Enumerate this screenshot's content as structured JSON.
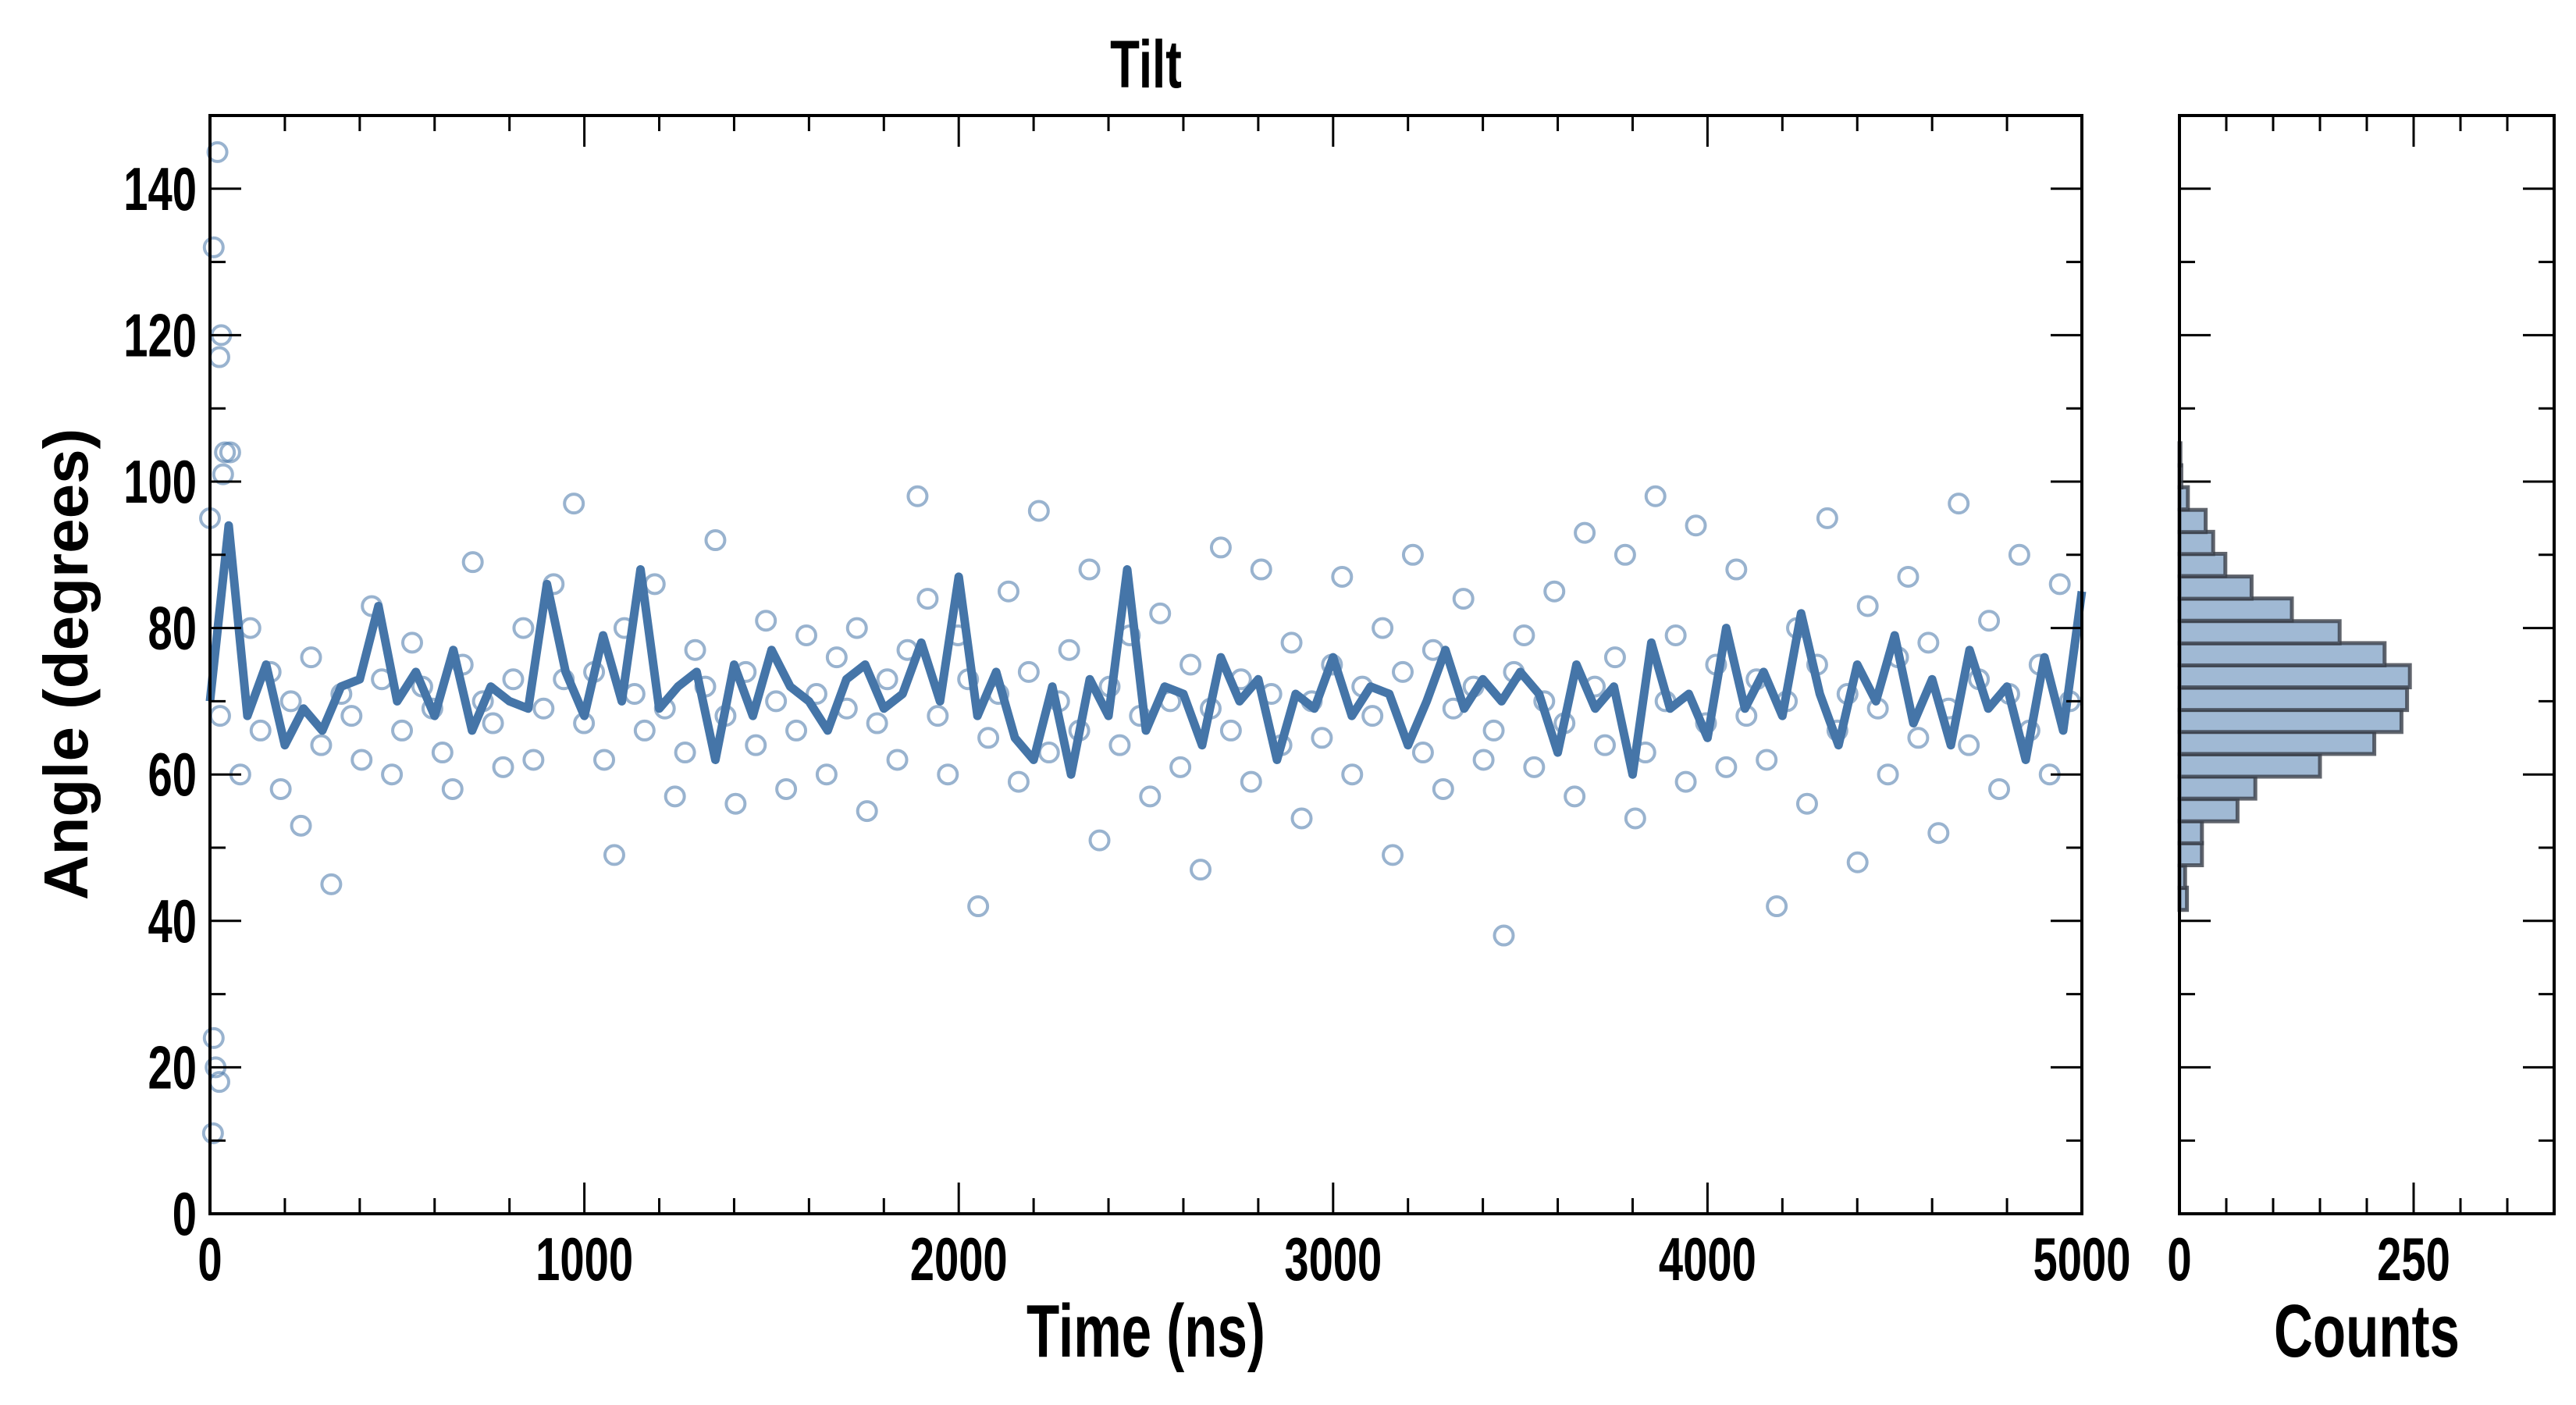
{
  "chart_data": [
    {
      "type": "scatter",
      "title": "Tilt",
      "xlabel": "Time (ns)",
      "ylabel": "Angle (degrees)",
      "xlim": [
        0,
        5000
      ],
      "ylim": [
        0,
        150
      ],
      "xticks": [
        "0",
        "1000",
        "2000",
        "3000",
        "4000",
        "5000"
      ],
      "yticks": [
        "0",
        "20",
        "40",
        "60",
        "80",
        "100",
        "120",
        "140"
      ],
      "grid": false,
      "colors": {
        "points": "#4575a8",
        "line": "#4575a8",
        "hist_fill": "#a0b9d4",
        "hist_edge": "#3a3f48"
      },
      "series": [
        {
          "name": "raw angle (hollow markers)",
          "x_start": 0,
          "x_step": 27,
          "values": [
            95,
            68,
            104,
            60,
            80,
            66,
            74,
            58,
            70,
            53,
            76,
            64,
            45,
            71,
            68,
            62,
            83,
            73,
            60,
            66,
            78,
            72,
            69,
            63,
            58,
            75,
            89,
            70,
            67,
            61,
            73,
            80,
            62,
            69,
            86,
            73,
            97,
            67,
            74,
            62,
            49,
            80,
            71,
            66,
            86,
            69,
            57,
            63,
            77,
            72,
            92,
            68,
            56,
            74,
            64,
            81,
            70,
            58,
            66,
            79,
            71,
            60,
            76,
            69,
            80,
            55,
            67,
            73,
            62,
            77,
            98,
            84,
            68,
            60,
            79,
            73,
            42,
            65,
            71,
            85,
            59,
            74,
            96,
            63,
            70,
            77,
            66,
            88,
            51,
            72,
            64,
            79,
            68,
            57,
            82,
            70,
            61,
            75,
            47,
            69,
            91,
            66,
            73,
            59,
            88,
            71,
            64,
            78,
            54,
            70,
            65,
            75,
            87,
            60,
            72,
            68,
            80,
            49,
            74,
            90,
            63,
            77,
            58,
            69,
            84,
            72,
            62,
            66,
            38,
            74,
            79,
            61,
            70,
            85,
            67,
            57,
            93,
            72,
            64,
            76,
            90,
            54,
            63,
            98,
            70,
            79,
            59,
            94,
            67,
            75,
            61,
            88,
            68,
            73,
            62,
            42,
            70,
            80,
            56,
            75,
            95,
            66,
            71,
            48,
            83,
            69,
            60,
            76,
            87,
            65,
            78,
            52,
            69,
            97,
            64,
            73,
            81,
            58,
            71,
            90,
            66,
            75,
            60,
            86,
            70
          ],
          "outliers": [
            [
              20,
              145
            ],
            [
              10,
              132
            ],
            [
              30,
              120
            ],
            [
              25,
              117
            ],
            [
              40,
              104
            ],
            [
              35,
              101
            ],
            [
              10,
              24
            ],
            [
              15,
              20
            ],
            [
              25,
              18
            ],
            [
              8,
              11
            ]
          ]
        },
        {
          "name": "running average (thick line)",
          "x_start": 0,
          "x_step": 50,
          "values": [
            70,
            94,
            68,
            75,
            64,
            69,
            66,
            72,
            73,
            83,
            70,
            74,
            68,
            77,
            66,
            72,
            70,
            69,
            86,
            74,
            68,
            79,
            70,
            88,
            69,
            72,
            74,
            62,
            75,
            68,
            77,
            72,
            70,
            66,
            73,
            75,
            69,
            71,
            78,
            70,
            87,
            68,
            74,
            65,
            62,
            72,
            60,
            73,
            68,
            88,
            66,
            72,
            71,
            64,
            76,
            70,
            73,
            62,
            71,
            69,
            76,
            68,
            72,
            71,
            64,
            70,
            77,
            69,
            73,
            70,
            74,
            71,
            63,
            75,
            69,
            72,
            60,
            78,
            69,
            71,
            65,
            80,
            69,
            74,
            68,
            82,
            71,
            64,
            75,
            70,
            79,
            67,
            73,
            64,
            77,
            69,
            72,
            62,
            76,
            66,
            85
          ]
        }
      ]
    },
    {
      "type": "bar",
      "orientation": "horizontal",
      "xlabel": "Counts",
      "xlim": [
        0,
        400
      ],
      "xticks": [
        "0",
        "250"
      ],
      "bin_width": 3.04,
      "bin_lower_edges": [
        41.5,
        44.5,
        47.6,
        50.6,
        53.6,
        56.7,
        59.7,
        62.8,
        65.8,
        68.8,
        71.9,
        74.9,
        77.9,
        81.0,
        84.0,
        87.1,
        90.1,
        93.1,
        96.2,
        99.2,
        102.2
      ],
      "values": [
        8,
        6,
        24,
        24,
        62,
        81,
        150,
        208,
        237,
        243,
        246,
        219,
        171,
        120,
        77,
        49,
        36,
        28,
        9,
        2,
        1
      ]
    }
  ]
}
